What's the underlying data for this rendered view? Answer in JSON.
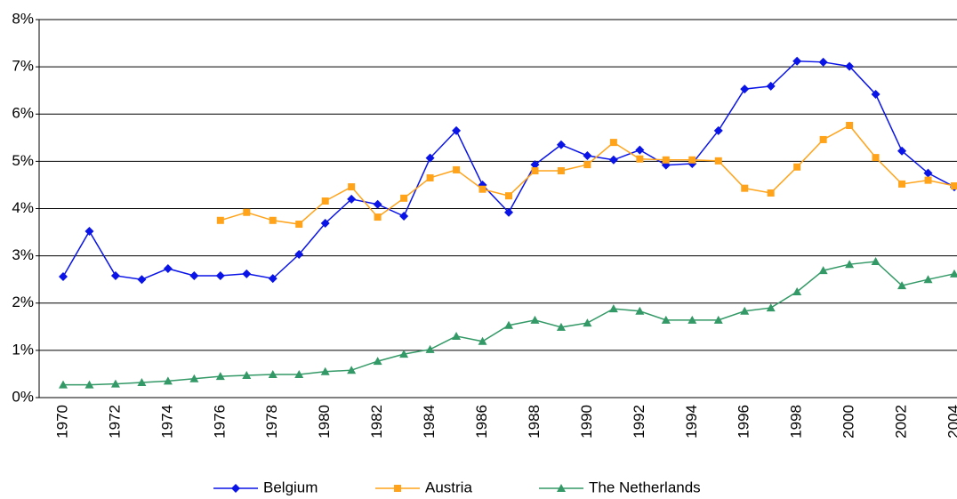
{
  "chart_data": {
    "type": "line",
    "categories": [
      "1970",
      null,
      "1972",
      null,
      "1974",
      null,
      "1976",
      null,
      "1978",
      null,
      "1980",
      null,
      "1982",
      null,
      "1984",
      null,
      "1986",
      null,
      "1988",
      null,
      "1990",
      null,
      "1992",
      null,
      "1994",
      null,
      "1996",
      null,
      "1998",
      null,
      "2000",
      null,
      "2002",
      null,
      "2004"
    ],
    "series": [
      {
        "name": "Belgium",
        "color": "#0a14e6",
        "marker": "diamond",
        "values": [
          2.56,
          3.52,
          2.58,
          2.5,
          2.73,
          2.58,
          2.58,
          2.62,
          2.52,
          3.03,
          3.69,
          4.2,
          4.09,
          3.84,
          5.07,
          5.65,
          4.5,
          3.92,
          4.93,
          5.35,
          5.12,
          5.03,
          5.24,
          4.92,
          4.95,
          5.65,
          6.53,
          6.59,
          7.12,
          7.1,
          7.01,
          6.42,
          5.22,
          4.75,
          4.46
        ]
      },
      {
        "name": "Austria",
        "color": "#ffa31a",
        "marker": "square",
        "values": [
          null,
          null,
          null,
          null,
          null,
          null,
          3.75,
          3.92,
          3.75,
          3.67,
          4.16,
          4.46,
          3.82,
          4.22,
          4.65,
          4.82,
          4.41,
          4.27,
          4.8,
          4.8,
          4.93,
          5.4,
          5.05,
          5.03,
          5.03,
          5.01,
          4.43,
          4.33,
          4.88,
          5.46,
          5.76,
          5.08,
          4.52,
          4.6,
          4.48
        ]
      },
      {
        "name": "The Netherlands",
        "color": "#339966",
        "marker": "triangle",
        "values": [
          0.27,
          0.27,
          0.29,
          0.32,
          0.35,
          0.4,
          0.45,
          0.47,
          0.49,
          0.49,
          0.55,
          0.58,
          0.77,
          0.92,
          1.02,
          1.3,
          1.19,
          1.53,
          1.64,
          1.49,
          1.58,
          1.88,
          1.83,
          1.64,
          1.64,
          1.64,
          1.83,
          1.9,
          2.24,
          2.69,
          2.82,
          2.88,
          2.37,
          2.5,
          2.62
        ]
      }
    ],
    "ylim": [
      0,
      8
    ],
    "yticks": [
      {
        "value": 0,
        "label": "0%"
      },
      {
        "value": 1,
        "label": "1%"
      },
      {
        "value": 2,
        "label": "2%"
      },
      {
        "value": 3,
        "label": "3%"
      },
      {
        "value": 4,
        "label": "4%"
      },
      {
        "value": 5,
        "label": "5%"
      },
      {
        "value": 6,
        "label": "6%"
      },
      {
        "value": 7,
        "label": "7%"
      },
      {
        "value": 8,
        "label": "8%"
      }
    ],
    "grid": true,
    "legend": "bottom"
  }
}
